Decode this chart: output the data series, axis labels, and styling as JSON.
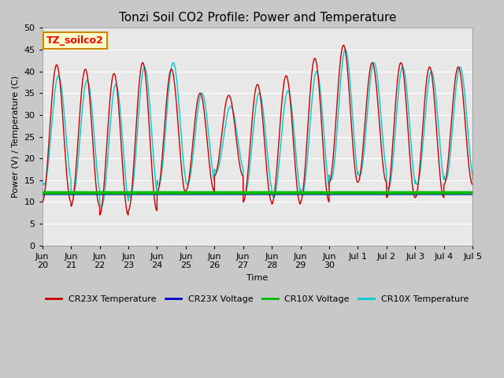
{
  "title": "Tonzi Soil CO2 Profile: Power and Temperature",
  "xlabel": "Time",
  "ylabel": "Power (V) / Temperature (C)",
  "ylim": [
    0,
    50
  ],
  "yticks": [
    0,
    5,
    10,
    15,
    20,
    25,
    30,
    35,
    40,
    45,
    50
  ],
  "bg_color": "#e8e8e8",
  "fig_bg_color": "#c8c8c8",
  "cr23x_temp_color": "#cc0000",
  "cr23x_volt_color": "#0000cc",
  "cr10x_volt_color": "#00bb00",
  "cr10x_temp_color": "#00cccc",
  "annotation_text": "TZ_soilco2",
  "annotation_bg": "#ffffcc",
  "annotation_border": "#cc8800",
  "x_labels": [
    "Jun\n20",
    "Jun\n21",
    "Jun\n22",
    "Jun\n23",
    "Jun\n24",
    "Jun\n25",
    "Jun\n26",
    "Jun\n27",
    "Jun\n28",
    "Jun\n29",
    "Jun\n30",
    "Jul 1",
    "Jul 2",
    "Jul 3",
    "Jul 4",
    "Jul 5"
  ],
  "cr23x_peaks": [
    41.5,
    40.5,
    39.5,
    42.0,
    40.5,
    35.0,
    34.5,
    37.0,
    39.0,
    43.0,
    46.0,
    42.0,
    42.0,
    41.0,
    41.0
  ],
  "cr23x_troughs": [
    10.0,
    9.0,
    7.0,
    8.0,
    12.0,
    12.5,
    16.0,
    10.0,
    9.5,
    10.0,
    14.5,
    14.5,
    11.0,
    11.0,
    14.0
  ],
  "cr10x_peaks": [
    39.0,
    38.0,
    37.0,
    41.0,
    42.0,
    35.0,
    32.0,
    35.0,
    35.5,
    40.0,
    45.0,
    42.0,
    41.0,
    40.0,
    41.0
  ],
  "cr10x_troughs": [
    14.0,
    11.5,
    9.0,
    11.0,
    14.0,
    14.0,
    17.0,
    12.0,
    11.0,
    12.0,
    15.0,
    16.0,
    13.0,
    14.0,
    15.0
  ],
  "cr23x_volt_value": 11.9,
  "cr10x_volt_value": 12.1,
  "title_fontsize": 11,
  "axis_fontsize": 8,
  "legend_fontsize": 8
}
